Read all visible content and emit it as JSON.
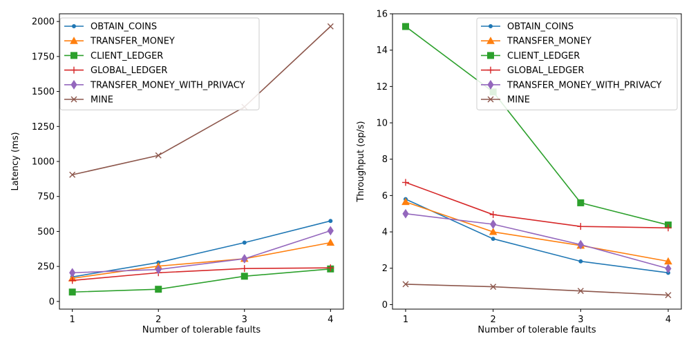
{
  "chart_data": [
    {
      "type": "line",
      "xlabel": "Number of tolerable faults",
      "ylabel": "Latency (ms)",
      "x": [
        1,
        2,
        3,
        4
      ],
      "xticks": [
        "1",
        "2",
        "3",
        "4"
      ],
      "ylim": [
        -55,
        2055
      ],
      "yticks": [
        0,
        250,
        500,
        750,
        1000,
        1250,
        1500,
        1750,
        2000
      ],
      "yticklabels": [
        "0",
        "250",
        "500",
        "750",
        "1000",
        "1250",
        "1500",
        "1750",
        "2000"
      ],
      "legend_position": "top-left",
      "series": [
        {
          "name": "OBTAIN_COINS",
          "color": "#1f77b4",
          "marker": "point",
          "values": [
            175,
            278,
            420,
            575
          ]
        },
        {
          "name": "TRANSFER_MONEY",
          "color": "#ff7f0e",
          "marker": "triangle",
          "values": [
            165,
            252,
            305,
            420
          ]
        },
        {
          "name": "CLIENT_LEDGER",
          "color": "#2ca02c",
          "marker": "square",
          "values": [
            67,
            87,
            180,
            232
          ]
        },
        {
          "name": "GLOBAL_LEDGER",
          "color": "#d62728",
          "marker": "plus",
          "values": [
            150,
            205,
            235,
            240
          ]
        },
        {
          "name": "TRANSFER_MONEY_WITH_PRIVACY",
          "color": "#9467bd",
          "marker": "diamond",
          "values": [
            205,
            228,
            305,
            505
          ]
        },
        {
          "name": "MINE",
          "color": "#8c564b",
          "marker": "x",
          "values": [
            905,
            1043,
            1390,
            1965
          ]
        }
      ]
    },
    {
      "type": "line",
      "xlabel": "Number of tolerable faults",
      "ylabel": "Throughput (op/s)",
      "x": [
        1,
        2,
        3,
        4
      ],
      "xticks": [
        "1",
        "2",
        "3",
        "4"
      ],
      "ylim": [
        -0.25,
        16.0
      ],
      "yticks": [
        0,
        2,
        4,
        6,
        8,
        10,
        12,
        14,
        16
      ],
      "yticklabels": [
        "0",
        "2",
        "4",
        "6",
        "8",
        "10",
        "12",
        "14",
        "16"
      ],
      "legend_position": "top-right",
      "series": [
        {
          "name": "OBTAIN_COINS",
          "color": "#1f77b4",
          "marker": "point",
          "values": [
            5.8,
            3.62,
            2.38,
            1.75
          ]
        },
        {
          "name": "TRANSFER_MONEY",
          "color": "#ff7f0e",
          "marker": "triangle",
          "values": [
            5.65,
            4.0,
            3.25,
            2.38
          ]
        },
        {
          "name": "CLIENT_LEDGER",
          "color": "#2ca02c",
          "marker": "square",
          "values": [
            15.3,
            11.7,
            5.6,
            4.38
          ]
        },
        {
          "name": "GLOBAL_LEDGER",
          "color": "#d62728",
          "marker": "plus",
          "values": [
            6.72,
            4.95,
            4.3,
            4.22
          ]
        },
        {
          "name": "TRANSFER_MONEY_WITH_PRIVACY",
          "color": "#9467bd",
          "marker": "diamond",
          "values": [
            5.0,
            4.42,
            3.3,
            1.98
          ]
        },
        {
          "name": "MINE",
          "color": "#8c564b",
          "marker": "x",
          "values": [
            1.12,
            0.98,
            0.75,
            0.52
          ]
        }
      ]
    }
  ]
}
